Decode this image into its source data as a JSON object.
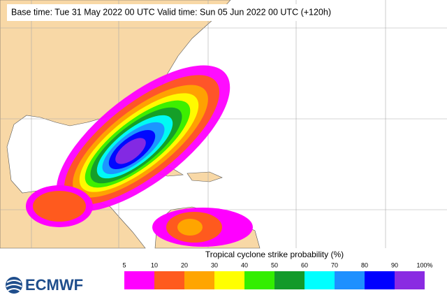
{
  "header": {
    "title": "Base time: Tue 31 May 2022 00 UTC Valid time: Sun 05 Jun 2022 00 UTC (+120h)"
  },
  "legend": {
    "title": "Tropical cyclone strike probability (%)",
    "ticks": [
      "5",
      "10",
      "20",
      "30",
      "40",
      "50",
      "60",
      "70",
      "80",
      "90",
      "100%"
    ],
    "colors": [
      "#ff00ff",
      "#ff5a1e",
      "#ffa500",
      "#ffff00",
      "#33ee00",
      "#139a2a",
      "#00ffff",
      "#1e90ff",
      "#0000ff",
      "#8a2be2"
    ]
  },
  "logo": {
    "text": "ECMWF"
  }
}
